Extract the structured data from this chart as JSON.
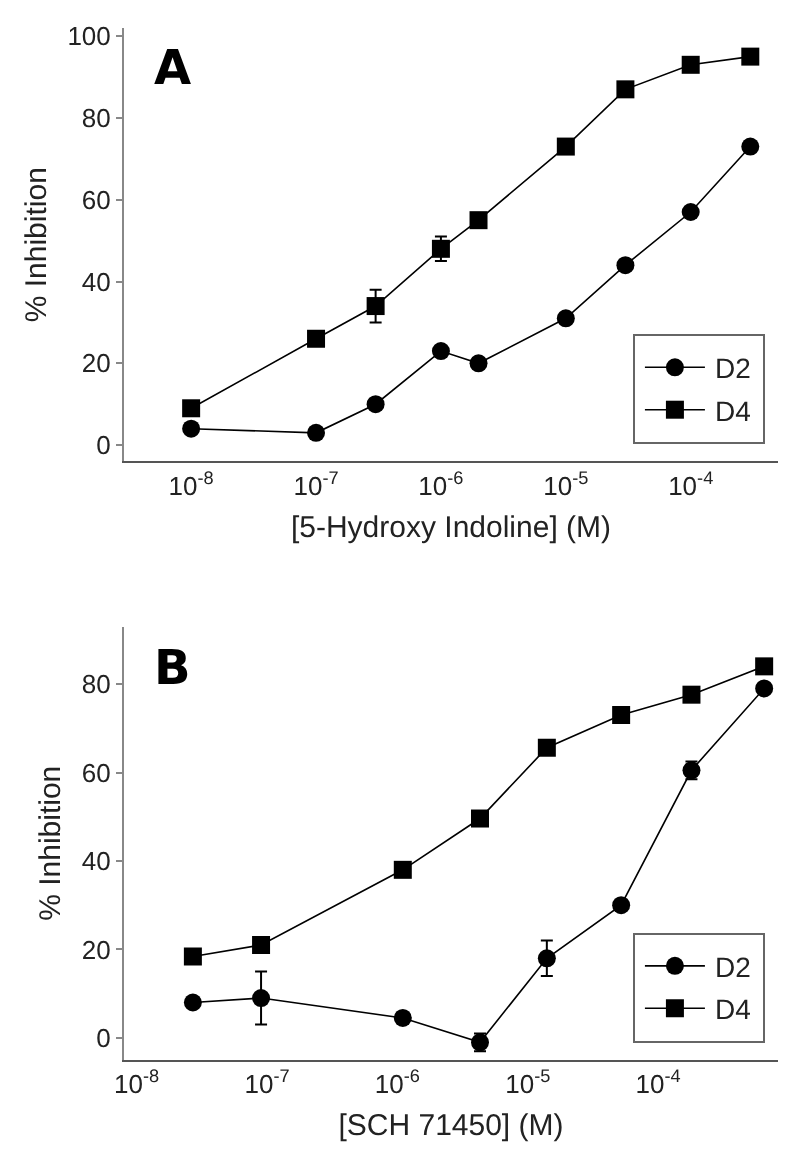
{
  "chart_data": [
    {
      "type": "line",
      "xlabel": "[5-Hydroxy Indoline] (M)",
      "ylabel": "% Inhibition",
      "annotations": [
        "A"
      ],
      "log": "x",
      "legend": "bottom right",
      "x": [
        1e-08,
        1e-07,
        3e-07,
        1e-06,
        2e-06,
        1e-05,
        3e-05,
        0.0001,
        0.0003
      ],
      "series": [
        {
          "name": "D2",
          "color": "#000000",
          "marker": "circle",
          "values": [
            4,
            3,
            10,
            23,
            20,
            31,
            44,
            57,
            73
          ]
        },
        {
          "name": "D4",
          "color": "#000000",
          "marker": "square",
          "values": [
            9,
            26,
            34,
            48,
            55,
            73,
            87,
            93,
            95
          ],
          "errors": [
            null,
            null,
            4,
            3,
            null,
            null,
            null,
            null,
            null
          ]
        }
      ],
      "xlim": [
        2.9e-09,
        0.0005
      ],
      "ylim": [
        -4,
        102
      ],
      "xticks": [
        {
          "value": 1e-08,
          "label": "10$^{-8}$"
        },
        {
          "value": 1e-07,
          "label": "10$^{-7}$"
        },
        {
          "value": 1e-06,
          "label": "10$^{-6}$"
        },
        {
          "value": 1e-05,
          "label": "10$^{-5}$"
        },
        {
          "value": 0.0001,
          "label": "10$^{-4}$"
        }
      ],
      "yticks": [
        0,
        20,
        40,
        60,
        80,
        100
      ]
    },
    {
      "type": "line",
      "xlabel": "[SCH 71450] (M)",
      "ylabel": "% Inhibition",
      "annotations": [
        "B"
      ],
      "log": "x",
      "legend": "bottom right",
      "x": [
        2.7e-08,
        9e-08,
        1.1e-06,
        4.3e-06,
        1.4e-05,
        5.2e-05,
        0.00018,
        0.00065
      ],
      "series": [
        {
          "name": "D2",
          "color": "#000000",
          "marker": "circle",
          "values": [
            8,
            9,
            4.5,
            -1,
            18,
            30,
            60.5,
            79
          ],
          "errors": [
            null,
            6,
            null,
            2,
            4,
            null,
            2,
            null
          ]
        },
        {
          "name": "D4",
          "color": "#000000",
          "marker": "square",
          "values": [
            18.4,
            21,
            38,
            49.6,
            65.6,
            73,
            77.6,
            84
          ]
        }
      ],
      "xlim": [
        8e-09,
        0.00083
      ],
      "ylim": [
        -5,
        93
      ],
      "xticks": [
        {
          "value": 1e-08,
          "label": "10$^{-8}$"
        },
        {
          "value": 1e-07,
          "label": "10$^{-7}$"
        },
        {
          "value": 1e-06,
          "label": "10$^{-6}$"
        },
        {
          "value": 1e-05,
          "label": "10$^{-5}$"
        },
        {
          "value": 0.0001,
          "label": "10$^{-4}$"
        }
      ],
      "yticks": [
        0,
        20,
        40,
        60,
        80
      ]
    }
  ]
}
